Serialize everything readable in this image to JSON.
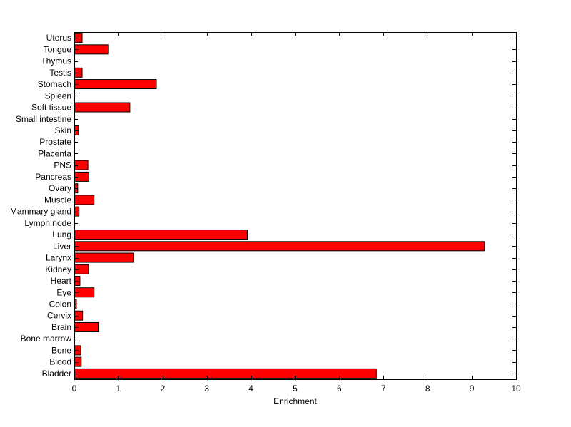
{
  "chart_data": {
    "type": "bar",
    "orientation": "horizontal",
    "title": "",
    "xlabel": "Enrichment",
    "ylabel": "",
    "xlim": [
      0,
      10
    ],
    "xticks": [
      0,
      1,
      2,
      3,
      4,
      5,
      6,
      7,
      8,
      9,
      10
    ],
    "grid": false,
    "bar_color": "#ff0000",
    "edge_color": "#000000",
    "categories": [
      "Bladder",
      "Blood",
      "Bone",
      "Bone marrow",
      "Brain",
      "Cervix",
      "Colon",
      "Eye",
      "Heart",
      "Kidney",
      "Larynx",
      "Liver",
      "Lung",
      "Lymph node",
      "Mammary gland",
      "Muscle",
      "Ovary",
      "Pancreas",
      "PNS",
      "Placenta",
      "Prostate",
      "Skin",
      "Small intestine",
      "Soft tissue",
      "Spleen",
      "Stomach",
      "Testis",
      "Thymus",
      "Tongue",
      "Uterus"
    ],
    "values": [
      6.83,
      0.15,
      0.14,
      0,
      0.55,
      0.18,
      0.04,
      0.44,
      0.12,
      0.31,
      1.34,
      9.28,
      3.91,
      0,
      0.1,
      0.44,
      0.07,
      0.32,
      0.3,
      0,
      0,
      0.08,
      0,
      1.25,
      0,
      1.85,
      0.17,
      0,
      0.77,
      0.17
    ]
  }
}
